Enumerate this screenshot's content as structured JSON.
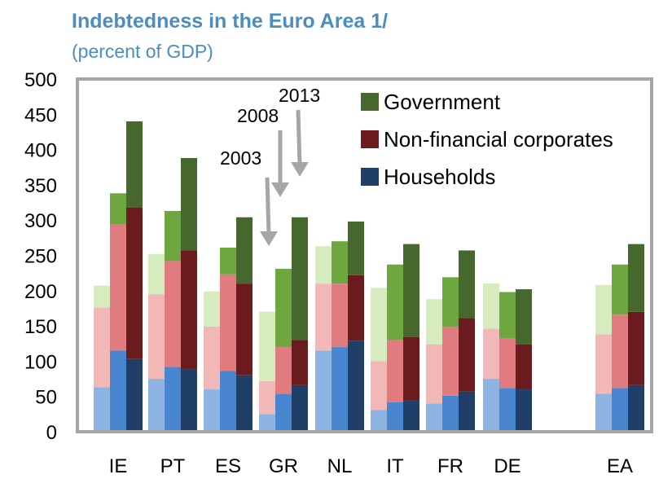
{
  "chart_data": {
    "type": "bar",
    "title": "Indebtedness in the Euro Area 1/",
    "subtitle": "(percent of GDP)",
    "ylim": [
      0,
      500
    ],
    "y_ticks": [
      0,
      50,
      100,
      150,
      200,
      250,
      300,
      350,
      400,
      450,
      500
    ],
    "categories": [
      "IE",
      "PT",
      "ES",
      "GR",
      "NL",
      "IT",
      "FR",
      "DE",
      "EA"
    ],
    "years": [
      "2003",
      "2008",
      "2013"
    ],
    "series": [
      {
        "name": "Households",
        "color": "#1f3f68",
        "values": {
          "2003": [
            63,
            75,
            60,
            25,
            115,
            31,
            40,
            75,
            54
          ],
          "2008": [
            115,
            92,
            86,
            54,
            120,
            42,
            51,
            62,
            62
          ],
          "2013": [
            103,
            89,
            80,
            66,
            129,
            45,
            57,
            60,
            66
          ]
        }
      },
      {
        "name": "Non-financial corporates",
        "color": "#6b1a1d",
        "values": {
          "2003": [
            113,
            120,
            89,
            47,
            95,
            69,
            84,
            71,
            84
          ],
          "2008": [
            179,
            150,
            137,
            66,
            90,
            88,
            98,
            70,
            104
          ],
          "2013": [
            215,
            168,
            130,
            64,
            93,
            89,
            104,
            64,
            104
          ]
        }
      },
      {
        "name": "Government",
        "color": "#47682c",
        "values": {
          "2003": [
            31,
            57,
            50,
            98,
            53,
            104,
            64,
            64,
            70
          ],
          "2008": [
            44,
            71,
            38,
            111,
            60,
            107,
            70,
            66,
            71
          ],
          "2013": [
            122,
            131,
            94,
            174,
            76,
            132,
            96,
            78,
            96
          ]
        }
      }
    ],
    "legend": [
      "Government",
      "Non-financial corporates",
      "Households"
    ],
    "legend_position": "top-right",
    "annotations": [
      "2003",
      "2008",
      "2013"
    ],
    "grid": false
  }
}
